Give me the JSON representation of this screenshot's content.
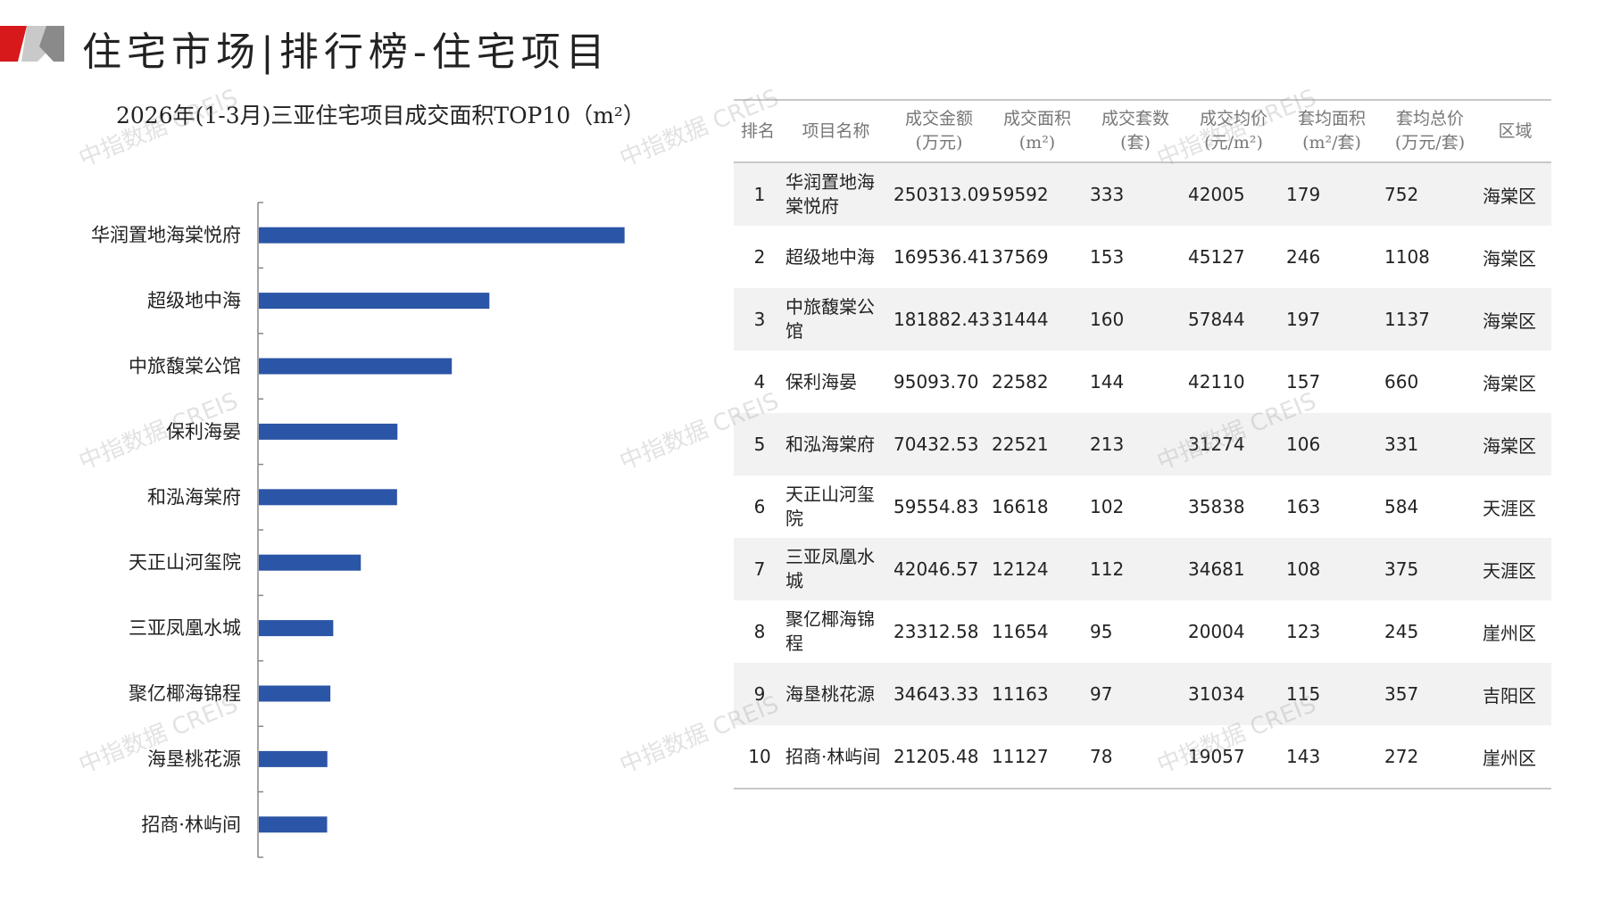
{
  "header": {
    "title": "住宅市场|排行榜-住宅项目"
  },
  "colors": {
    "accent_red": "#d7191c",
    "bar": "#2b55a6",
    "header_text": "#777777"
  },
  "watermark": "中指数据 CREIS",
  "chart_data": {
    "type": "bar",
    "orientation": "horizontal",
    "title": "2026年(1-3月)三亚住宅项目成交面积TOP10（m²）",
    "categories": [
      "华润置地海棠悦府",
      "超级地中海",
      "中旅馥棠公馆",
      "保利海晏",
      "和泓海棠府",
      "天正山河玺院",
      "三亚凤凰水城",
      "聚亿椰海锦程",
      "海垦桃花源",
      "招商·林屿间"
    ],
    "values": [
      59592,
      37569,
      31444,
      22582,
      22521,
      16618,
      12124,
      11654,
      11163,
      11127
    ],
    "xlim": [
      0,
      64000
    ],
    "grid": false
  },
  "table": {
    "headers": [
      [
        "排名"
      ],
      [
        "项目名称"
      ],
      [
        "成交金额",
        "(万元)"
      ],
      [
        "成交面积",
        "(m²)"
      ],
      [
        "成交套数",
        "(套)"
      ],
      [
        "成交均价",
        "(元/m²)"
      ],
      [
        "套均面积",
        "(m²/套)"
      ],
      [
        "套均总价",
        "(万元/套)"
      ],
      [
        "区域"
      ]
    ],
    "rows": [
      {
        "rank": "1",
        "name": "华润置地海棠悦府",
        "amount": "250313.09",
        "area": "59592",
        "units": "333",
        "price": "42005",
        "avg_area": "179",
        "avg_total": "752",
        "district": "海棠区"
      },
      {
        "rank": "2",
        "name": "超级地中海",
        "amount": "169536.41",
        "area": "37569",
        "units": "153",
        "price": "45127",
        "avg_area": "246",
        "avg_total": "1108",
        "district": "海棠区"
      },
      {
        "rank": "3",
        "name": "中旅馥棠公馆",
        "amount": "181882.43",
        "area": "31444",
        "units": "160",
        "price": "57844",
        "avg_area": "197",
        "avg_total": "1137",
        "district": "海棠区"
      },
      {
        "rank": "4",
        "name": "保利海晏",
        "amount": "95093.70",
        "area": "22582",
        "units": "144",
        "price": "42110",
        "avg_area": "157",
        "avg_total": "660",
        "district": "海棠区"
      },
      {
        "rank": "5",
        "name": "和泓海棠府",
        "amount": "70432.53",
        "area": "22521",
        "units": "213",
        "price": "31274",
        "avg_area": "106",
        "avg_total": "331",
        "district": "海棠区"
      },
      {
        "rank": "6",
        "name": "天正山河玺院",
        "amount": "59554.83",
        "area": "16618",
        "units": "102",
        "price": "35838",
        "avg_area": "163",
        "avg_total": "584",
        "district": "天涯区"
      },
      {
        "rank": "7",
        "name": "三亚凤凰水城",
        "amount": "42046.57",
        "area": "12124",
        "units": "112",
        "price": "34681",
        "avg_area": "108",
        "avg_total": "375",
        "district": "天涯区"
      },
      {
        "rank": "8",
        "name": "聚亿椰海锦程",
        "amount": "23312.58",
        "area": "11654",
        "units": "95",
        "price": "20004",
        "avg_area": "123",
        "avg_total": "245",
        "district": "崖州区"
      },
      {
        "rank": "9",
        "name": "海垦桃花源",
        "amount": "34643.33",
        "area": "11163",
        "units": "97",
        "price": "31034",
        "avg_area": "115",
        "avg_total": "357",
        "district": "吉阳区"
      },
      {
        "rank": "10",
        "name": "招商·林屿间",
        "amount": "21205.48",
        "area": "11127",
        "units": "78",
        "price": "19057",
        "avg_area": "143",
        "avg_total": "272",
        "district": "崖州区"
      }
    ]
  }
}
